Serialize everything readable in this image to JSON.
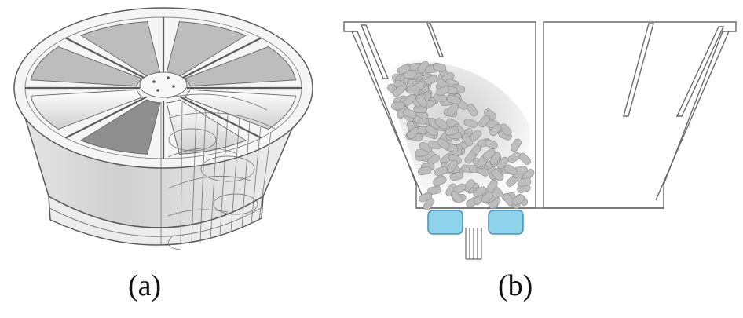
{
  "panels": [
    {
      "id": "a",
      "caption": "(a)",
      "depicts": "radial-compartment-drum"
    },
    {
      "id": "b",
      "caption": "(b)",
      "depicts": "hopper-cross-section-with-tablets"
    }
  ],
  "colors": {
    "outline": "#5a5a5a",
    "drum_wall": "#d2d2d2",
    "drum_top": "#f5f5f5",
    "drum_shadow": "#9a9a9a",
    "tablet_fill": "#bdbdbd",
    "tablet_edge": "#8a8a8a",
    "sensor_fill": "#8fd3ea",
    "sensor_edge": "#4a90b8"
  }
}
